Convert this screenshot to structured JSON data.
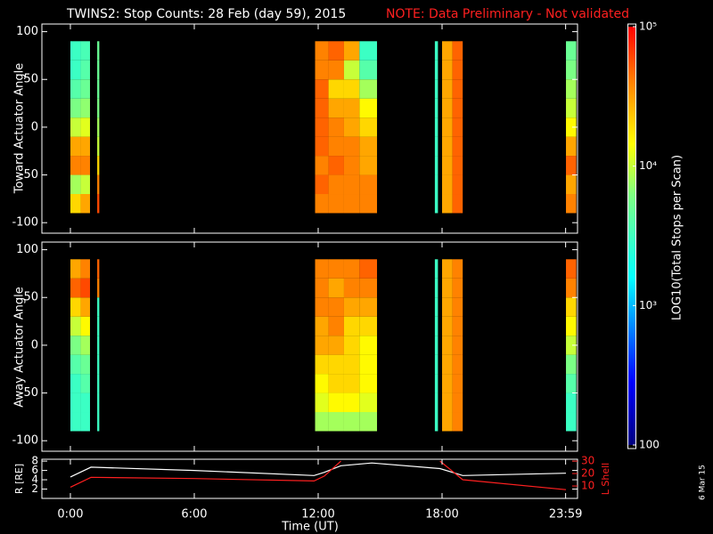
{
  "title": "TWINS2: Stop Counts: 28 Feb (day  59), 2015",
  "note": "NOTE: Data Preliminary - Not validated",
  "date_stamp": "6 Mar 15",
  "chart_data": [
    {
      "type": "heatmap",
      "ylabel": "Toward Actuator Angle",
      "xlim": [
        -1.38,
        24.56
      ],
      "ylim": [
        -111,
        108
      ],
      "yticks": [
        -100,
        -50,
        0,
        50,
        100
      ],
      "xbins": [
        0,
        0.5,
        0.95,
        1.3,
        1.4,
        11.85,
        12.5,
        13.25,
        14,
        14.85,
        17.65,
        17.8,
        18,
        18.5,
        19,
        24,
        24.5
      ],
      "ybins": [
        -90,
        -70,
        -50,
        -30,
        -10,
        10,
        30,
        50,
        70,
        90
      ],
      "values": [
        [
          20000,
          30000,
          null,
          60000,
          null,
          40000,
          40000,
          40000,
          40000,
          null,
          3000,
          null,
          30000,
          50000,
          null,
          40000
        ],
        [
          8000,
          10000,
          null,
          40000,
          null,
          50000,
          40000,
          40000,
          40000,
          null,
          3000,
          null,
          30000,
          50000,
          null,
          30000
        ],
        [
          40000,
          40000,
          null,
          20000,
          null,
          40000,
          50000,
          40000,
          30000,
          null,
          3000,
          null,
          30000,
          50000,
          null,
          50000
        ],
        [
          30000,
          30000,
          null,
          10000,
          null,
          50000,
          40000,
          40000,
          30000,
          null,
          3000,
          null,
          30000,
          50000,
          null,
          30000
        ],
        [
          10000,
          12000,
          null,
          8000,
          null,
          50000,
          40000,
          30000,
          20000,
          null,
          3000,
          null,
          30000,
          50000,
          null,
          15000
        ],
        [
          6000,
          7000,
          null,
          6000,
          null,
          50000,
          30000,
          30000,
          15000,
          null,
          3000,
          null,
          30000,
          50000,
          null,
          10000
        ],
        [
          4000,
          5000,
          null,
          5000,
          null,
          50000,
          20000,
          20000,
          8000,
          null,
          3000,
          null,
          30000,
          50000,
          null,
          8000
        ],
        [
          3000,
          4000,
          null,
          5000,
          null,
          40000,
          40000,
          10000,
          4000,
          null,
          3000,
          null,
          30000,
          50000,
          null,
          6000
        ],
        [
          3000,
          3500,
          null,
          5000,
          null,
          40000,
          50000,
          30000,
          3000,
          null,
          3000,
          null,
          30000,
          50000,
          null,
          5000
        ]
      ],
      "colorbar": {
        "label": "LOG10(Total Stops per Scan)",
        "lim": [
          100,
          100000
        ],
        "log": true,
        "ticks": [
          {
            "value": 100000,
            "label": "10⁵"
          },
          {
            "value": 10000,
            "label": "10⁴"
          },
          {
            "value": 1000,
            "label": "10³"
          },
          100
        ],
        "colorscale": [
          [
            0,
            "#000080"
          ],
          [
            0.15,
            "#0000ff"
          ],
          [
            0.4,
            "#00ffff"
          ],
          [
            0.6,
            "#80ff80"
          ],
          [
            0.72,
            "#ffff00"
          ],
          [
            0.87,
            "#ff8000"
          ],
          [
            1,
            "#ff0000"
          ]
        ]
      }
    },
    {
      "type": "heatmap",
      "ylabel": "Away Actuator Angle",
      "xlim": [
        -1.38,
        24.56
      ],
      "ylim": [
        -111,
        108
      ],
      "yticks": [
        -100,
        -50,
        0,
        50,
        100
      ],
      "xbins": [
        0,
        0.5,
        0.95,
        1.3,
        1.4,
        11.85,
        12.5,
        13.25,
        14,
        14.85,
        17.65,
        17.8,
        18,
        18.5,
        19,
        24,
        24.5
      ],
      "ybins": [
        -90,
        -70,
        -50,
        -30,
        -10,
        10,
        30,
        50,
        70,
        90
      ],
      "values": [
        [
          3000,
          3000,
          null,
          3000,
          null,
          8000,
          8000,
          8000,
          8000,
          null,
          3000,
          null,
          30000,
          40000,
          null,
          3000
        ],
        [
          3000,
          3000,
          null,
          3000,
          null,
          12000,
          15000,
          15000,
          12000,
          null,
          3000,
          null,
          30000,
          40000,
          null,
          3000
        ],
        [
          3000,
          4000,
          null,
          3000,
          null,
          15000,
          20000,
          20000,
          15000,
          null,
          3000,
          null,
          30000,
          40000,
          null,
          4000
        ],
        [
          4000,
          5000,
          null,
          3000,
          null,
          20000,
          20000,
          20000,
          15000,
          null,
          3000,
          null,
          30000,
          40000,
          null,
          6000
        ],
        [
          6000,
          8000,
          null,
          3000,
          null,
          30000,
          30000,
          20000,
          15000,
          null,
          3000,
          null,
          30000,
          40000,
          null,
          10000
        ],
        [
          10000,
          15000,
          null,
          3000,
          null,
          30000,
          40000,
          20000,
          20000,
          null,
          3000,
          null,
          30000,
          40000,
          null,
          15000
        ],
        [
          20000,
          30000,
          null,
          3000,
          null,
          40000,
          40000,
          30000,
          30000,
          null,
          3000,
          null,
          30000,
          40000,
          null,
          20000
        ],
        [
          50000,
          60000,
          null,
          40000,
          null,
          40000,
          30000,
          40000,
          40000,
          null,
          3000,
          null,
          30000,
          40000,
          null,
          40000
        ],
        [
          30000,
          40000,
          null,
          50000,
          null,
          40000,
          40000,
          40000,
          50000,
          null,
          3000,
          null,
          30000,
          40000,
          null,
          50000
        ]
      ]
    },
    {
      "type": "line",
      "ylabel": "R [RE]",
      "y2label": "L Shell",
      "xlabel": "Time (UT)",
      "xlim": [
        -1.38,
        24.56
      ],
      "xticks": [
        {
          "value": 0,
          "label": "0:00"
        },
        {
          "value": 6,
          "label": "6:00"
        },
        {
          "value": 12,
          "label": "12:00"
        },
        {
          "value": 18,
          "label": "18:00"
        },
        {
          "value": 23.983,
          "label": "23:59"
        }
      ],
      "ylim": [
        0,
        8.4
      ],
      "yticks": [
        2,
        4,
        6,
        8
      ],
      "y2lim": [
        0,
        31.5
      ],
      "y2ticks": [
        10,
        20,
        30
      ],
      "x": [
        0,
        1,
        6,
        11.8,
        12.3,
        13.1,
        14.6,
        17.9,
        19,
        24
      ],
      "series": [
        {
          "color": "#ffffff",
          "values": [
            4.6,
            6.7,
            6.0,
            4.9,
            5.6,
            7.0,
            7.6,
            6.4,
            4.9,
            5.4
          ]
        },
        {
          "color": "#ff2020",
          "axis": "y2",
          "values": [
            9,
            17,
            16,
            14,
            18,
            30,
            null,
            30,
            15,
            7
          ]
        }
      ]
    }
  ]
}
